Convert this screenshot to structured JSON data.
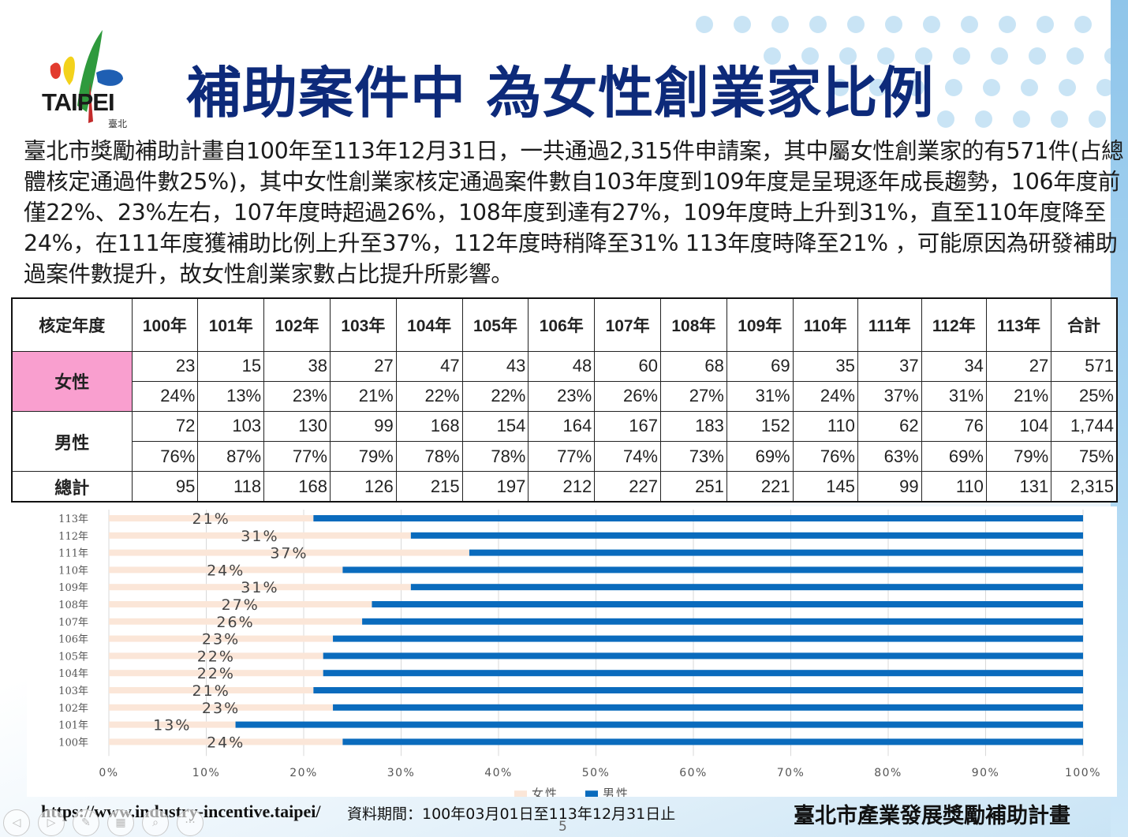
{
  "logo": {
    "text": "TAIPEI",
    "sub": "臺北"
  },
  "title": "補助案件中 為女性創業家比例",
  "description": "臺北市獎勵補助計畫自100年至113年12月31日，一共通過2,315件申請案，其中屬女性創業家的有571件(占總體核定通過件數25%)，其中女性創業家核定通過案件數自103年度到109年度是呈現逐年成長趨勢，106年度前僅22%、23%左右，107年度時超過26%，108年度到達有27%，109年度時上升到31%，直至110年度降至24%，在111年度獲補助比例上升至37%，112年度時稍降至31% 113年度時降至21% ，可能原因為研發補助過案件數提升，故女性創業家數占比提升所影響。",
  "table": {
    "header_label": "核定年度",
    "years": [
      "100年",
      "101年",
      "102年",
      "103年",
      "104年",
      "105年",
      "106年",
      "107年",
      "108年",
      "109年",
      "110年",
      "111年",
      "112年",
      "113年",
      "合計"
    ],
    "female_label": "女性",
    "female_counts": [
      "23",
      "15",
      "38",
      "27",
      "47",
      "43",
      "48",
      "60",
      "68",
      "69",
      "35",
      "37",
      "34",
      "27",
      "571"
    ],
    "female_pct": [
      "24%",
      "13%",
      "23%",
      "21%",
      "22%",
      "22%",
      "23%",
      "26%",
      "27%",
      "31%",
      "24%",
      "37%",
      "31%",
      "21%",
      "25%"
    ],
    "male_label": "男性",
    "male_counts": [
      "72",
      "103",
      "130",
      "99",
      "168",
      "154",
      "164",
      "167",
      "183",
      "152",
      "110",
      "62",
      "76",
      "104",
      "1,744"
    ],
    "male_pct": [
      "76%",
      "87%",
      "77%",
      "79%",
      "78%",
      "78%",
      "77%",
      "74%",
      "73%",
      "69%",
      "76%",
      "63%",
      "69%",
      "79%",
      "75%"
    ],
    "total_label": "總計",
    "totals": [
      "95",
      "118",
      "168",
      "126",
      "215",
      "197",
      "212",
      "227",
      "251",
      "221",
      "145",
      "99",
      "110",
      "131",
      "2,315"
    ]
  },
  "chart_data": {
    "type": "bar",
    "orientation": "horizontal",
    "stacked": true,
    "categories": [
      "113年",
      "112年",
      "111年",
      "110年",
      "109年",
      "108年",
      "107年",
      "106年",
      "105年",
      "104年",
      "103年",
      "102年",
      "101年",
      "100年"
    ],
    "series": [
      {
        "name": "女性",
        "color": "#fbe6d8",
        "values": [
          21,
          31,
          37,
          24,
          31,
          27,
          26,
          23,
          22,
          22,
          21,
          23,
          13,
          24
        ]
      },
      {
        "name": "男性",
        "color": "#0a6bbd",
        "values": [
          79,
          69,
          63,
          76,
          69,
          73,
          74,
          77,
          78,
          78,
          79,
          77,
          87,
          76
        ]
      }
    ],
    "data_labels": [
      "21%",
      "31%",
      "37%",
      "24%",
      "31%",
      "27%",
      "26%",
      "23%",
      "22%",
      "22%",
      "21%",
      "23%",
      "13%",
      "24%"
    ],
    "xticks": [
      "0%",
      "10%",
      "20%",
      "30%",
      "40%",
      "50%",
      "60%",
      "70%",
      "80%",
      "90%",
      "100%"
    ],
    "xlim": [
      0,
      100
    ],
    "grid": true,
    "legend": "bottom"
  },
  "footer": {
    "url": "https://www.industry-incentive.taipei/",
    "period": "資料期間：100年03月01日至113年12月31日止",
    "program": "臺北市產業發展獎勵補助計畫",
    "page_number": "5"
  },
  "toolbar": [
    "back-icon",
    "forward-icon",
    "pen-icon",
    "slides-icon",
    "zoom-icon",
    "more-icon"
  ]
}
